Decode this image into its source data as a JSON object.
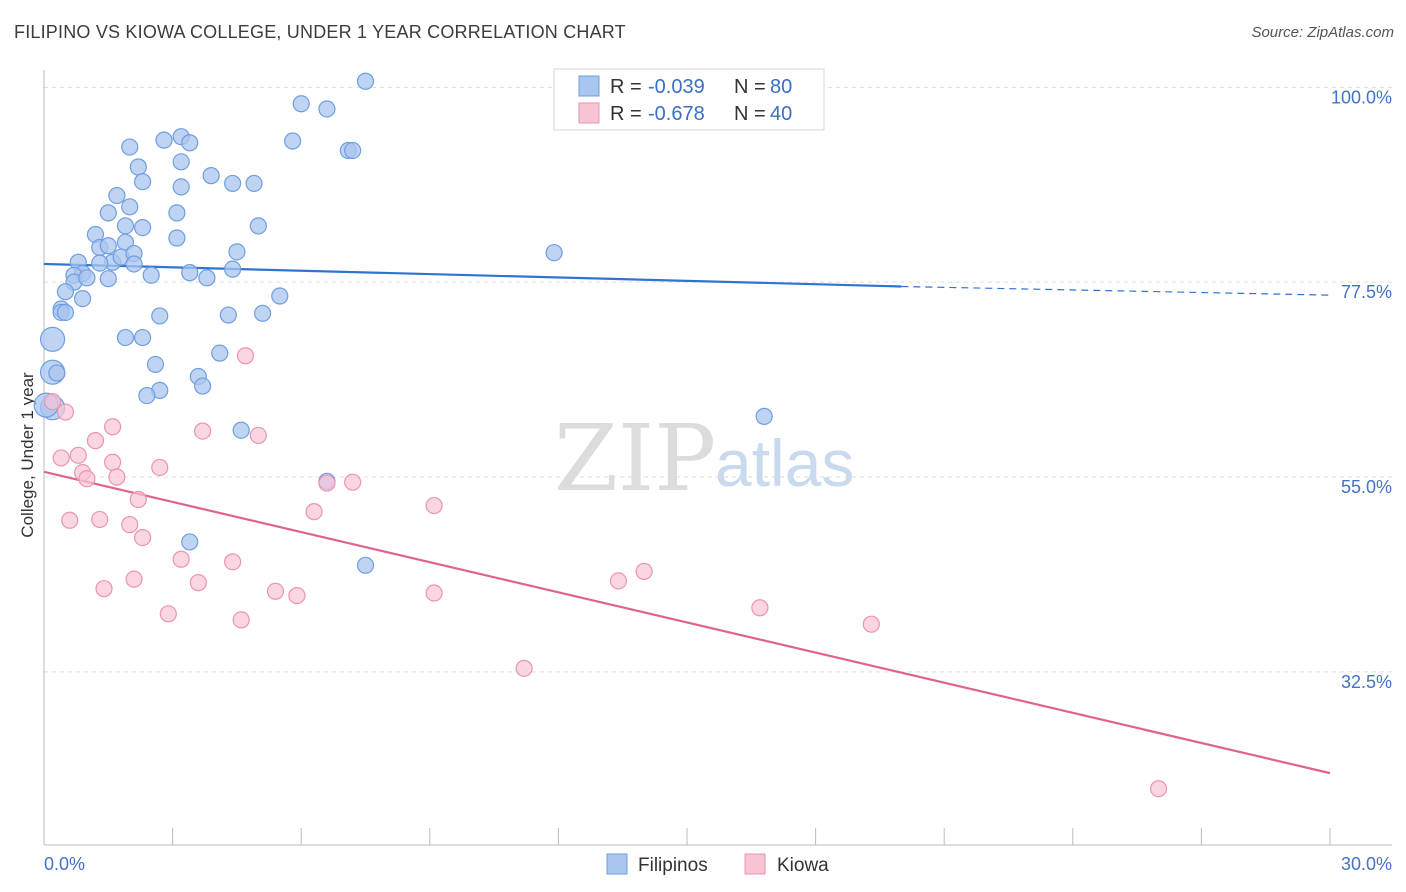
{
  "header": {
    "title": "FILIPINO VS KIOWA COLLEGE, UNDER 1 YEAR CORRELATION CHART",
    "source": "Source: ZipAtlas.com"
  },
  "watermark": {
    "zip": "ZIP",
    "atlas": "atlas"
  },
  "colors": {
    "blue_fill": "#a9c6ef",
    "blue_stroke": "#6f9ee0",
    "blue_line": "#2f74d0",
    "pink_fill": "#f7c4d4",
    "pink_stroke": "#ec94b0",
    "pink_line": "#e0638f",
    "grid": "#dddddd",
    "axis_label": "#4472c4"
  },
  "legend": {
    "r_label": "R =",
    "n_label": "N =",
    "rows": [
      {
        "series": "Filipinos",
        "r": "-0.039",
        "n": "80"
      },
      {
        "series": "Kiowa",
        "r": "-0.678",
        "n": "40"
      }
    ]
  },
  "chart_data": {
    "type": "scatter",
    "title": "FILIPINO VS KIOWA COLLEGE, UNDER 1 YEAR CORRELATION CHART",
    "xlabel": "",
    "ylabel": "College, Under 1 year",
    "xlim": [
      0,
      30
    ],
    "ylim": [
      12.5,
      102
    ],
    "x_tick_labels": [
      "0.0%",
      "30.0%"
    ],
    "y_ticks": [
      32.5,
      55.0,
      77.5,
      100.0
    ],
    "y_tick_labels": [
      "32.5%",
      "55.0%",
      "77.5%",
      "100.0%"
    ],
    "grid": true,
    "legend_position": "top-center",
    "series": [
      {
        "name": "Filipinos",
        "color": "#6f9ee0",
        "trend": {
          "x0": 0,
          "y0": 79.6,
          "x1": 20.0,
          "y1": 77.0,
          "dash_to_x": 30.0,
          "dash_to_y": 76.0
        },
        "points": [
          [
            7.5,
            100.7
          ],
          [
            6.0,
            98.1
          ],
          [
            6.6,
            97.5
          ],
          [
            5.8,
            93.8
          ],
          [
            7.1,
            92.7
          ],
          [
            7.2,
            92.7
          ],
          [
            2.8,
            93.9
          ],
          [
            3.2,
            94.3
          ],
          [
            3.4,
            93.6
          ],
          [
            3.2,
            91.4
          ],
          [
            2.0,
            93.1
          ],
          [
            2.2,
            90.8
          ],
          [
            2.3,
            89.1
          ],
          [
            3.2,
            88.5
          ],
          [
            3.9,
            89.8
          ],
          [
            4.4,
            88.9
          ],
          [
            4.9,
            88.9
          ],
          [
            1.7,
            87.5
          ],
          [
            2.0,
            86.2
          ],
          [
            3.1,
            85.5
          ],
          [
            1.5,
            85.5
          ],
          [
            1.9,
            84.0
          ],
          [
            5.0,
            84.0
          ],
          [
            2.3,
            83.8
          ],
          [
            1.9,
            82.1
          ],
          [
            3.1,
            82.6
          ],
          [
            1.2,
            83.0
          ],
          [
            1.3,
            81.5
          ],
          [
            1.5,
            81.7
          ],
          [
            1.6,
            79.8
          ],
          [
            1.8,
            80.4
          ],
          [
            2.1,
            80.8
          ],
          [
            4.5,
            81.0
          ],
          [
            0.8,
            79.8
          ],
          [
            1.3,
            79.7
          ],
          [
            2.1,
            79.6
          ],
          [
            4.4,
            79.0
          ],
          [
            0.9,
            78.5
          ],
          [
            0.7,
            78.3
          ],
          [
            0.7,
            77.5
          ],
          [
            1.0,
            78.0
          ],
          [
            2.5,
            78.3
          ],
          [
            3.4,
            78.6
          ],
          [
            3.8,
            78.0
          ],
          [
            1.5,
            77.9
          ],
          [
            0.5,
            76.4
          ],
          [
            5.5,
            75.9
          ],
          [
            0.9,
            75.6
          ],
          [
            0.4,
            74.4
          ],
          [
            0.4,
            74.0
          ],
          [
            0.5,
            74.0
          ],
          [
            2.7,
            73.6
          ],
          [
            4.3,
            73.7
          ],
          [
            5.1,
            73.9
          ],
          [
            11.9,
            80.9
          ],
          [
            1.9,
            71.1
          ],
          [
            2.3,
            71.1
          ],
          [
            0.2,
            70.9
          ],
          [
            4.1,
            69.3
          ],
          [
            2.6,
            68.0
          ],
          [
            0.2,
            67.1
          ],
          [
            0.3,
            67.0
          ],
          [
            3.6,
            66.6
          ],
          [
            3.7,
            65.5
          ],
          [
            2.7,
            65.0
          ],
          [
            2.4,
            64.4
          ],
          [
            0.2,
            63.0
          ],
          [
            0.05,
            63.3
          ],
          [
            16.8,
            62.0
          ],
          [
            4.6,
            60.4
          ],
          [
            6.6,
            54.5
          ],
          [
            3.4,
            47.5
          ],
          [
            7.5,
            44.8
          ]
        ]
      },
      {
        "name": "Kiowa",
        "color": "#ec94b0",
        "trend": {
          "x0": 0,
          "y0": 55.6,
          "x1": 30.0,
          "y1": 20.8
        },
        "points": [
          [
            0.2,
            63.7
          ],
          [
            0.5,
            62.5
          ],
          [
            4.7,
            69.0
          ],
          [
            1.6,
            60.8
          ],
          [
            3.7,
            60.3
          ],
          [
            5.0,
            59.8
          ],
          [
            1.2,
            59.2
          ],
          [
            0.4,
            57.2
          ],
          [
            0.8,
            57.5
          ],
          [
            1.6,
            56.7
          ],
          [
            2.7,
            56.1
          ],
          [
            0.9,
            55.5
          ],
          [
            1.0,
            54.8
          ],
          [
            1.7,
            55.0
          ],
          [
            7.2,
            54.4
          ],
          [
            6.6,
            54.3
          ],
          [
            2.2,
            52.4
          ],
          [
            9.1,
            51.7
          ],
          [
            6.3,
            51.0
          ],
          [
            0.6,
            50.0
          ],
          [
            1.3,
            50.1
          ],
          [
            2.0,
            49.5
          ],
          [
            2.3,
            48.0
          ],
          [
            3.2,
            45.5
          ],
          [
            4.4,
            45.2
          ],
          [
            14.0,
            44.1
          ],
          [
            13.4,
            43.0
          ],
          [
            3.6,
            42.8
          ],
          [
            1.4,
            42.1
          ],
          [
            2.1,
            43.2
          ],
          [
            5.4,
            41.8
          ],
          [
            5.9,
            41.3
          ],
          [
            9.1,
            41.6
          ],
          [
            16.7,
            39.9
          ],
          [
            2.9,
            39.2
          ],
          [
            4.6,
            38.5
          ],
          [
            19.3,
            38.0
          ],
          [
            11.2,
            32.9
          ],
          [
            26.0,
            19.0
          ]
        ]
      }
    ]
  }
}
